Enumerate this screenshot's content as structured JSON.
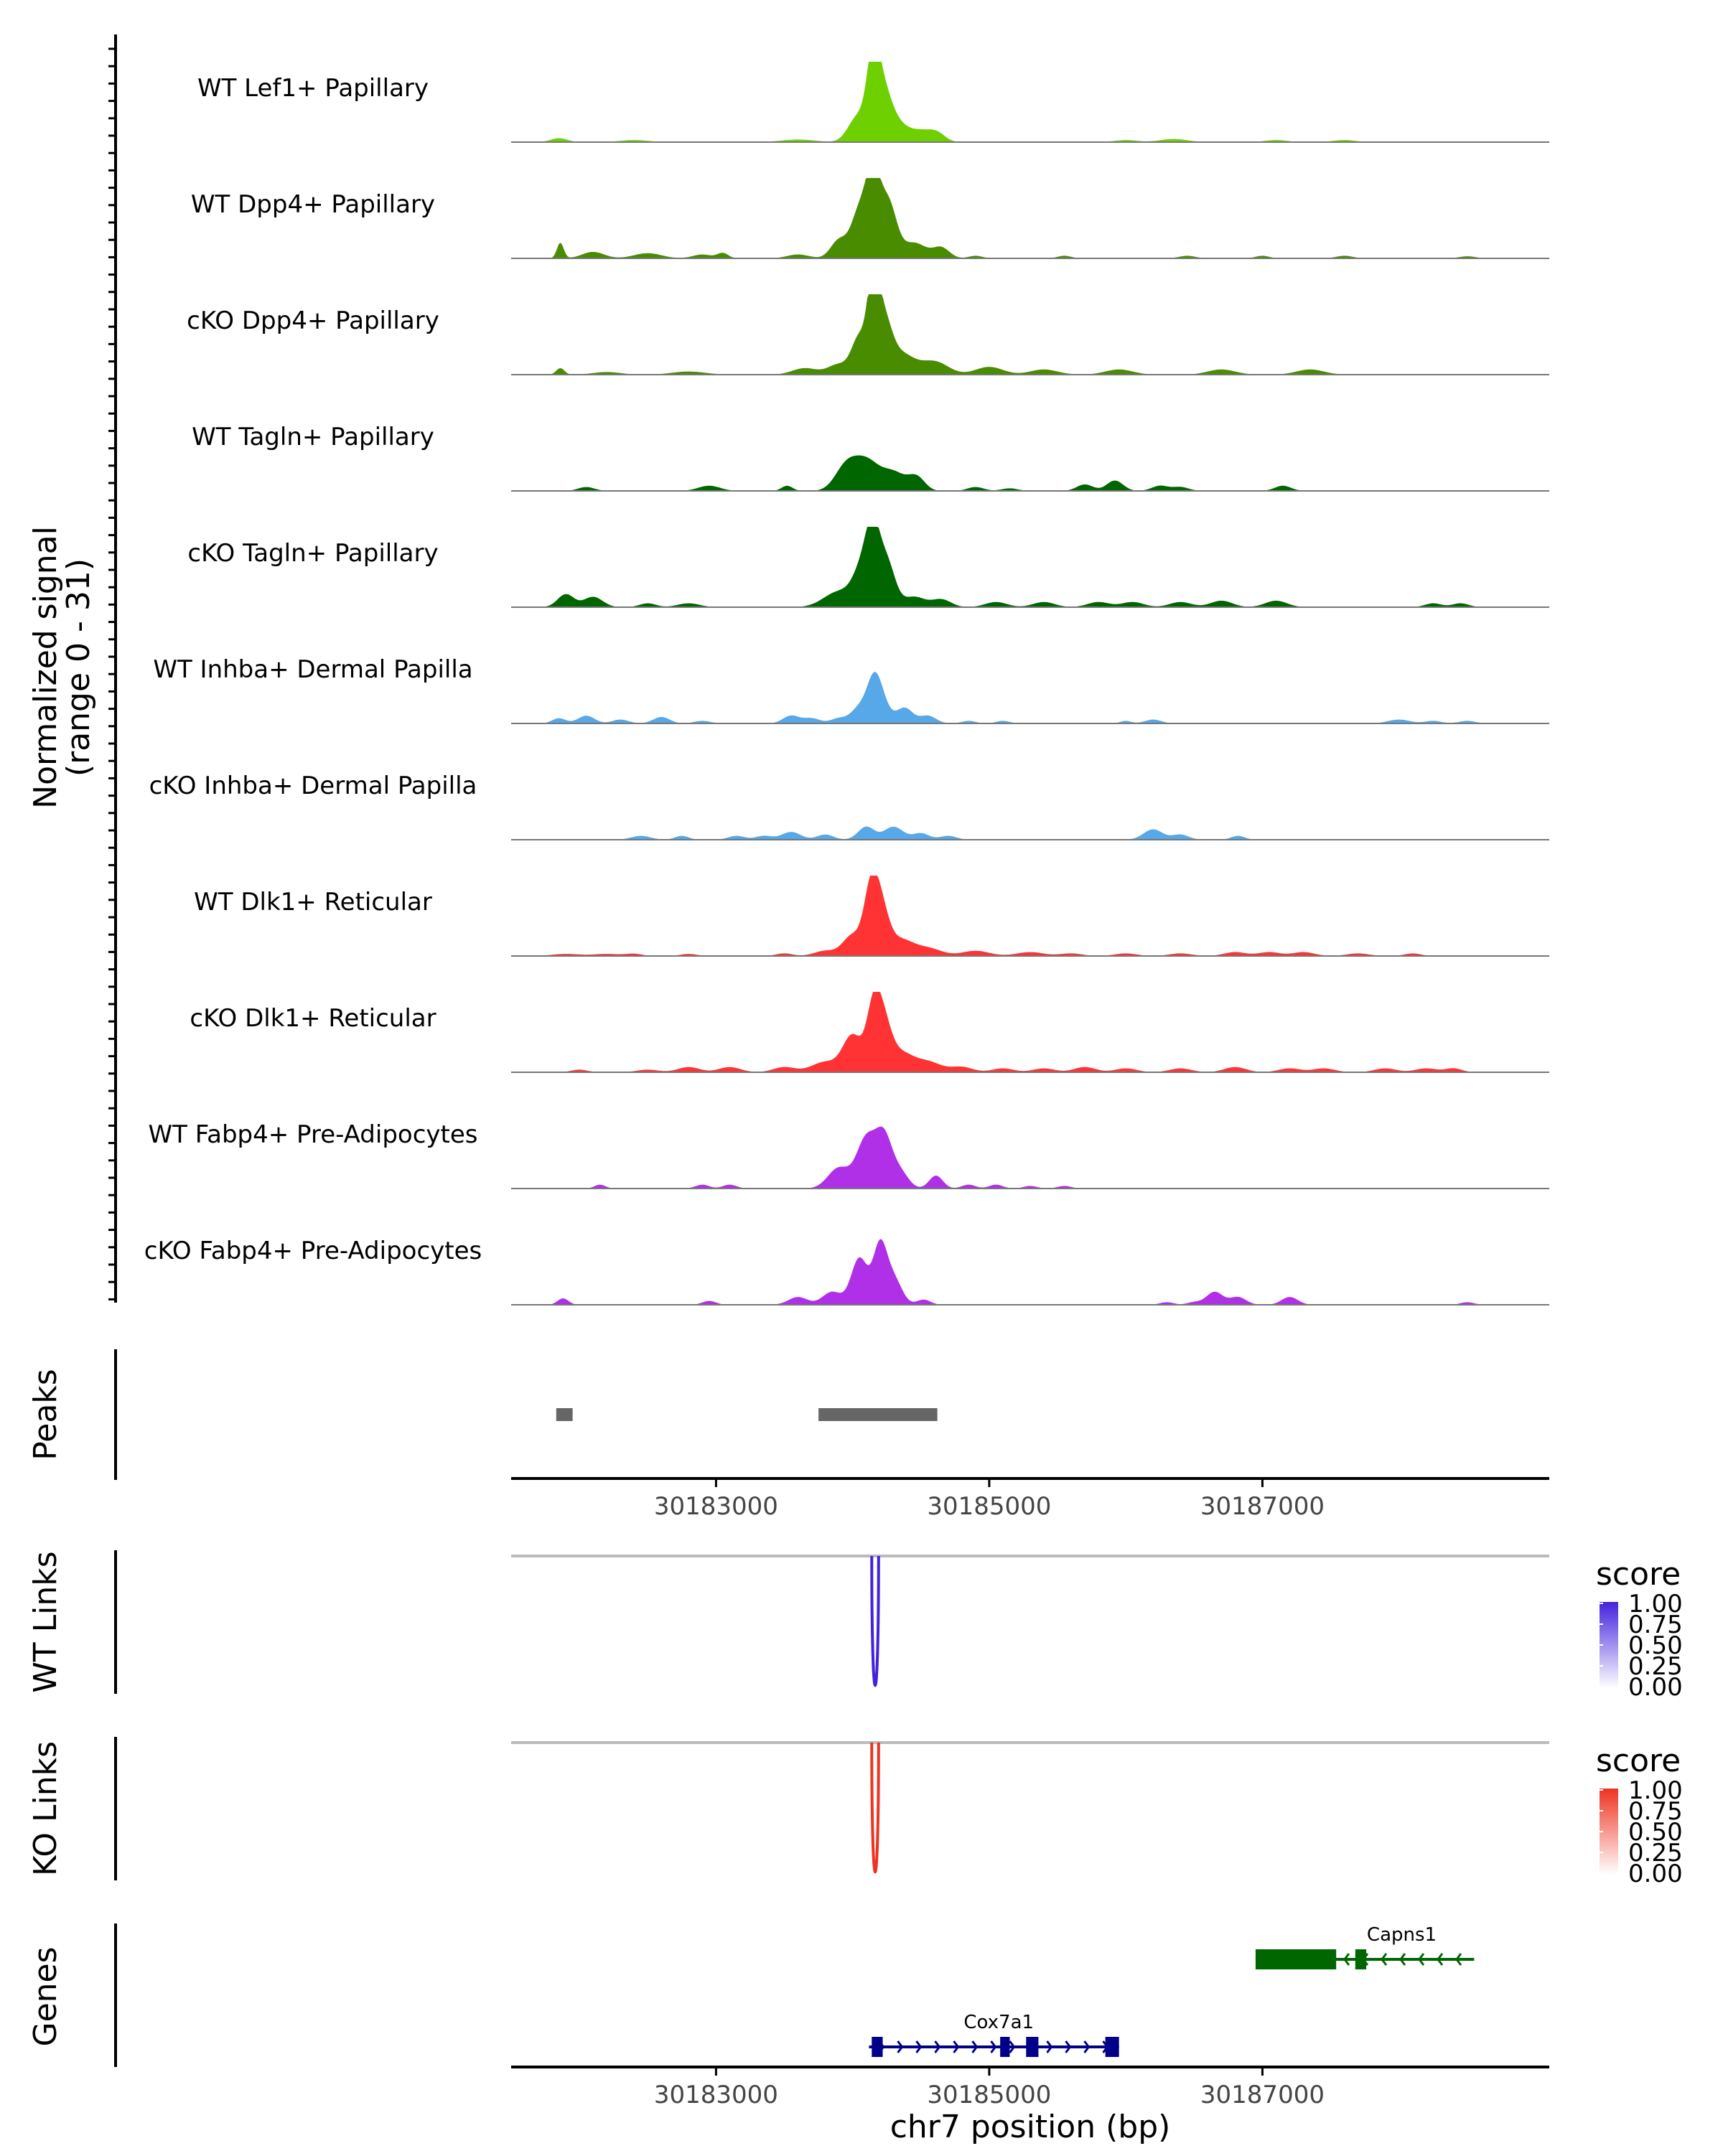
{
  "chart_data": {
    "type": "area",
    "title": "",
    "chromosome": "chr7",
    "xlabel": "chr7 position (bp)",
    "xlim": [
      30181500,
      30189100
    ],
    "xticks": [
      30183000,
      30185000,
      30187000
    ],
    "ylabel_line1": "Normalized signal",
    "ylabel_line2": "(range 0 - 31)",
    "ylim": [
      0,
      31
    ],
    "coverage_tracks": [
      {
        "name": "WT Lef1+ Papillary",
        "color": "#6fd000",
        "peaks": [
          [
            30181850,
            1.5,
            60
          ],
          [
            30182400,
            0.8,
            100
          ],
          [
            30183600,
            1,
            120
          ],
          [
            30184040,
            10,
            70
          ],
          [
            30184150,
            28,
            45
          ],
          [
            30184220,
            17,
            60
          ],
          [
            30184320,
            7,
            80
          ],
          [
            30184500,
            4,
            80
          ],
          [
            30184620,
            3,
            60
          ],
          [
            30186000,
            0.8,
            80
          ],
          [
            30186350,
            1.2,
            100
          ],
          [
            30187100,
            0.8,
            80
          ],
          [
            30187600,
            0.8,
            80
          ]
        ]
      },
      {
        "name": "WT Dpp4+ Papillary",
        "color": "#4a8c00",
        "peaks": [
          [
            30181860,
            6,
            25
          ],
          [
            30182100,
            2.5,
            80
          ],
          [
            30182500,
            2,
            100
          ],
          [
            30182900,
            1.5,
            70
          ],
          [
            30183050,
            2,
            40
          ],
          [
            30183600,
            1.5,
            80
          ],
          [
            30183900,
            7,
            60
          ],
          [
            30184050,
            18,
            60
          ],
          [
            30184150,
            30,
            50
          ],
          [
            30184260,
            21,
            60
          ],
          [
            30184450,
            6,
            90
          ],
          [
            30184650,
            4,
            60
          ],
          [
            30184900,
            1,
            50
          ],
          [
            30185550,
            1,
            50
          ],
          [
            30186450,
            1,
            60
          ],
          [
            30187000,
            1,
            50
          ],
          [
            30187600,
            1,
            60
          ],
          [
            30188500,
            0.8,
            60
          ]
        ]
      },
      {
        "name": "cKO Dpp4+ Papillary",
        "color": "#4a8c00",
        "peaks": [
          [
            30181860,
            2.5,
            30
          ],
          [
            30182200,
            1,
            100
          ],
          [
            30182800,
            1.2,
            120
          ],
          [
            30183650,
            2.5,
            90
          ],
          [
            30183900,
            4,
            80
          ],
          [
            30184050,
            14,
            55
          ],
          [
            30184150,
            31,
            40
          ],
          [
            30184220,
            20,
            60
          ],
          [
            30184350,
            8,
            100
          ],
          [
            30184600,
            5,
            100
          ],
          [
            30185000,
            3,
            100
          ],
          [
            30185400,
            2,
            100
          ],
          [
            30185950,
            2,
            100
          ],
          [
            30186700,
            2,
            100
          ],
          [
            30187350,
            2,
            100
          ]
        ]
      },
      {
        "name": "WT Tagln+ Papillary",
        "color": "#006600",
        "peaks": [
          [
            30182050,
            1.5,
            60
          ],
          [
            30182950,
            2,
            80
          ],
          [
            30183520,
            2,
            40
          ],
          [
            30183950,
            9,
            80
          ],
          [
            30184100,
            11,
            90
          ],
          [
            30184300,
            7,
            90
          ],
          [
            30184470,
            5,
            60
          ],
          [
            30184900,
            1.5,
            60
          ],
          [
            30185150,
            1,
            60
          ],
          [
            30185700,
            2.5,
            60
          ],
          [
            30185920,
            4,
            60
          ],
          [
            30186250,
            2,
            60
          ],
          [
            30186400,
            1.5,
            60
          ],
          [
            30187150,
            2,
            60
          ]
        ]
      },
      {
        "name": "cKO Tagln+ Papillary",
        "color": "#006600",
        "peaks": [
          [
            30181900,
            5,
            60
          ],
          [
            30182100,
            4,
            70
          ],
          [
            30182500,
            1.5,
            60
          ],
          [
            30182800,
            1.5,
            80
          ],
          [
            30183900,
            6,
            110
          ],
          [
            30184080,
            15,
            70
          ],
          [
            30184150,
            22,
            50
          ],
          [
            30184250,
            17,
            60
          ],
          [
            30184450,
            4,
            80
          ],
          [
            30184650,
            3,
            70
          ],
          [
            30185050,
            2,
            80
          ],
          [
            30185400,
            2,
            80
          ],
          [
            30185800,
            2,
            80
          ],
          [
            30186050,
            2,
            80
          ],
          [
            30186400,
            2,
            80
          ],
          [
            30186700,
            2.5,
            80
          ],
          [
            30187100,
            2.5,
            80
          ],
          [
            30188250,
            1.5,
            60
          ],
          [
            30188450,
            1.5,
            60
          ]
        ]
      },
      {
        "name": "WT Inhba+ Dermal Papilla",
        "color": "#56a8e8",
        "peaks": [
          [
            30181850,
            2,
            50
          ],
          [
            30182050,
            3,
            60
          ],
          [
            30182300,
            1.5,
            60
          ],
          [
            30182600,
            2.5,
            60
          ],
          [
            30182900,
            1,
            60
          ],
          [
            30183550,
            3,
            60
          ],
          [
            30183700,
            2,
            60
          ],
          [
            30183900,
            2,
            60
          ],
          [
            30184050,
            6,
            60
          ],
          [
            30184150,
            11,
            50
          ],
          [
            30184200,
            10,
            60
          ],
          [
            30184380,
            6,
            60
          ],
          [
            30184550,
            3,
            60
          ],
          [
            30184850,
            1,
            50
          ],
          [
            30185100,
            1,
            50
          ],
          [
            30186000,
            1,
            40
          ],
          [
            30186200,
            1.5,
            60
          ],
          [
            30188000,
            1.5,
            80
          ],
          [
            30188250,
            1,
            60
          ],
          [
            30188500,
            1,
            60
          ]
        ]
      },
      {
        "name": "cKO Inhba+ Dermal Papilla",
        "color": "#56a8e8",
        "peaks": [
          [
            30182450,
            1.5,
            70
          ],
          [
            30182750,
            1.5,
            50
          ],
          [
            30183150,
            1.5,
            60
          ],
          [
            30183350,
            1.5,
            60
          ],
          [
            30183550,
            3,
            70
          ],
          [
            30183800,
            2,
            60
          ],
          [
            30184100,
            5,
            60
          ],
          [
            30184300,
            5,
            70
          ],
          [
            30184500,
            2.5,
            60
          ],
          [
            30184700,
            1.5,
            60
          ],
          [
            30186200,
            4,
            70
          ],
          [
            30186400,
            2,
            60
          ],
          [
            30186820,
            1.5,
            50
          ]
        ]
      },
      {
        "name": "WT Dlk1+ Reticular",
        "color": "#ff3333",
        "peaks": [
          [
            30181900,
            0.8,
            100
          ],
          [
            30182200,
            0.8,
            100
          ],
          [
            30182400,
            0.8,
            60
          ],
          [
            30182800,
            0.8,
            60
          ],
          [
            30183500,
            1,
            60
          ],
          [
            30183800,
            2,
            80
          ],
          [
            30184000,
            8,
            70
          ],
          [
            30184130,
            20,
            50
          ],
          [
            30184200,
            19,
            60
          ],
          [
            30184350,
            6,
            90
          ],
          [
            30184550,
            3,
            100
          ],
          [
            30184900,
            2,
            100
          ],
          [
            30185300,
            1.5,
            100
          ],
          [
            30185600,
            1,
            80
          ],
          [
            30186000,
            1,
            80
          ],
          [
            30186400,
            1,
            80
          ],
          [
            30186800,
            1.5,
            80
          ],
          [
            30187050,
            1.5,
            80
          ],
          [
            30187300,
            1.5,
            80
          ],
          [
            30187700,
            1,
            80
          ],
          [
            30188100,
            1,
            60
          ]
        ]
      },
      {
        "name": "cKO Dlk1+ Reticular",
        "color": "#ff3333",
        "peaks": [
          [
            30182000,
            1,
            60
          ],
          [
            30182500,
            1,
            80
          ],
          [
            30182800,
            2,
            80
          ],
          [
            30183100,
            2,
            80
          ],
          [
            30183500,
            2,
            80
          ],
          [
            30183800,
            4,
            100
          ],
          [
            30184000,
            14,
            70
          ],
          [
            30184150,
            20,
            50
          ],
          [
            30184220,
            18,
            60
          ],
          [
            30184350,
            7,
            90
          ],
          [
            30184550,
            4,
            100
          ],
          [
            30184800,
            2,
            80
          ],
          [
            30185100,
            1.5,
            80
          ],
          [
            30185400,
            1.5,
            80
          ],
          [
            30185700,
            2,
            80
          ],
          [
            30186000,
            1.5,
            80
          ],
          [
            30186400,
            1.5,
            80
          ],
          [
            30186800,
            2,
            80
          ],
          [
            30187200,
            1.5,
            80
          ],
          [
            30187450,
            1.5,
            80
          ],
          [
            30187900,
            1.5,
            80
          ],
          [
            30188200,
            1.5,
            80
          ],
          [
            30188400,
            1.5,
            60
          ]
        ]
      },
      {
        "name": "WT Fabp4+ Pre-Adipocytes",
        "color": "#b030e8",
        "peaks": [
          [
            30182150,
            1.5,
            40
          ],
          [
            30182900,
            1.5,
            50
          ],
          [
            30183100,
            1.5,
            50
          ],
          [
            30183900,
            8,
            80
          ],
          [
            30184100,
            19,
            70
          ],
          [
            30184230,
            19,
            60
          ],
          [
            30184350,
            6,
            60
          ],
          [
            30184610,
            5,
            50
          ],
          [
            30184850,
            1.5,
            50
          ],
          [
            30185050,
            1.5,
            50
          ],
          [
            30185300,
            1,
            50
          ],
          [
            30185550,
            1,
            50
          ]
        ]
      },
      {
        "name": "cKO Fabp4+ Pre-Adipocytes",
        "color": "#b030e8",
        "peaks": [
          [
            30181880,
            2.5,
            40
          ],
          [
            30182950,
            1.5,
            50
          ],
          [
            30183600,
            3,
            70
          ],
          [
            30183850,
            5,
            70
          ],
          [
            30184050,
            18,
            60
          ],
          [
            30184200,
            22,
            50
          ],
          [
            30184300,
            10,
            60
          ],
          [
            30184520,
            2,
            50
          ],
          [
            30186300,
            1,
            50
          ],
          [
            30186500,
            1,
            50
          ],
          [
            30186650,
            5,
            60
          ],
          [
            30186820,
            3,
            60
          ],
          [
            30187200,
            3,
            60
          ],
          [
            30188500,
            1,
            50
          ]
        ]
      }
    ],
    "peaks_track": {
      "label": "Peaks",
      "color": "#666666",
      "regions": [
        [
          30181830,
          30181950
        ],
        [
          30183750,
          30184620
        ]
      ]
    },
    "link_tracks": [
      {
        "label": "WT Links",
        "color": "#4422dd",
        "legend_title": "score",
        "legend_values": [
          "1.00",
          "0.75",
          "0.50",
          "0.25",
          "0.00"
        ],
        "links": [
          [
            30184140,
            30184190,
            1.0
          ]
        ]
      },
      {
        "label": "KO Links",
        "color": "#ee3322",
        "legend_title": "score",
        "legend_values": [
          "1.00",
          "0.75",
          "0.50",
          "0.25",
          "0.00"
        ],
        "links": [
          [
            30184140,
            30184190,
            1.0
          ]
        ]
      }
    ],
    "genes_track": {
      "label": "Genes",
      "genes": [
        {
          "name": "Capns1",
          "strand": "-",
          "color": "#006600",
          "start": 30186950,
          "end": 30188550,
          "exons": [
            [
              30186950,
              30187540
            ],
            [
              30187680,
              30187760
            ]
          ]
        },
        {
          "name": "Cox7a1",
          "strand": "+",
          "color": "#000088",
          "start": 30184120,
          "end": 30185950,
          "exons": [
            [
              30184140,
              30184220
            ],
            [
              30185080,
              30185150
            ],
            [
              30185270,
              30185360
            ],
            [
              30185850,
              30185950
            ]
          ]
        }
      ]
    }
  }
}
